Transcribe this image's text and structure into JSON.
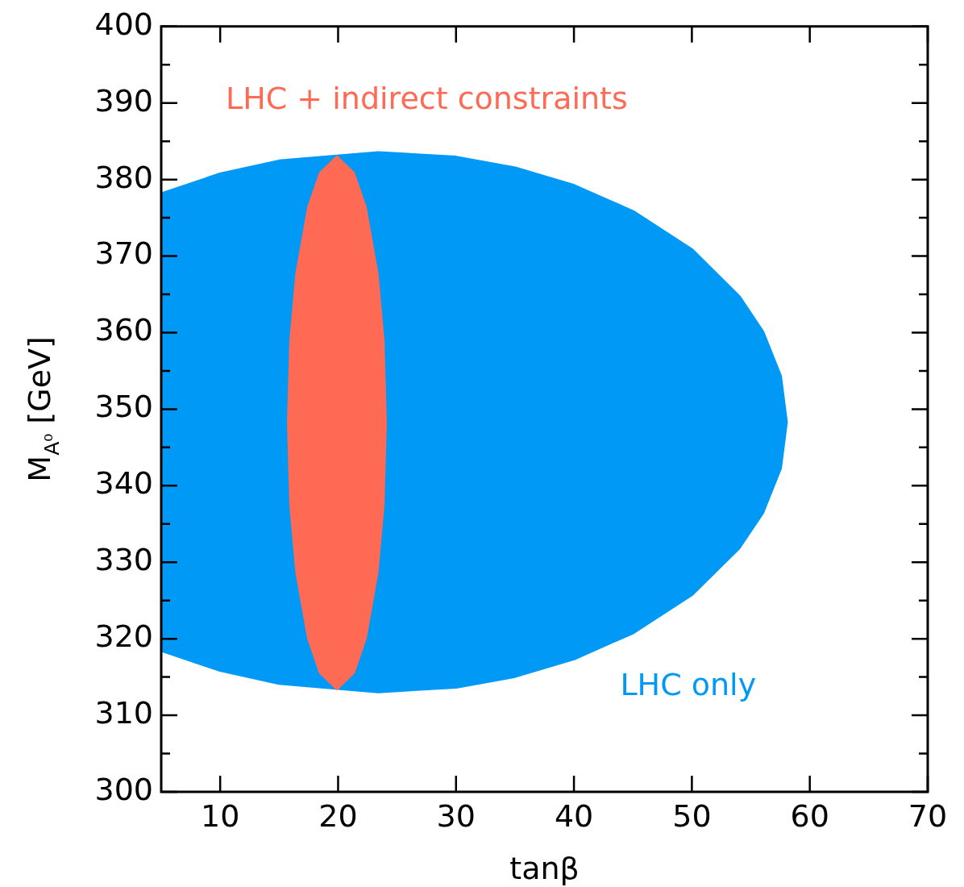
{
  "chart_data": {
    "type": "area",
    "xlabel": "tan$_{}$β",
    "ylabel": "M$_{A⁰}$ [GeV]",
    "xlim": [
      5,
      70
    ],
    "xticks": [
      10,
      20,
      30,
      40,
      50,
      60,
      70
    ],
    "ylim": [
      300,
      400
    ],
    "yticks": [
      300,
      {
        "value": 305,
        "label": null
      },
      310,
      {
        "value": 315,
        "label": null
      },
      320,
      {
        "value": 325,
        "label": null
      },
      330,
      {
        "value": 335,
        "label": null
      },
      340,
      {
        "value": 345,
        "label": null
      },
      350,
      {
        "value": 355,
        "label": null
      },
      360,
      {
        "value": 365,
        "label": null
      },
      370,
      {
        "value": 375,
        "label": null
      },
      380,
      {
        "value": 385,
        "label": null
      },
      390,
      {
        "value": 395,
        "label": null
      },
      400
    ],
    "grid": false,
    "legend": false,
    "series": [
      {
        "name": "LHC only",
        "color": "#0099f5",
        "x": [
          5,
          10,
          15,
          23.4,
          30,
          35,
          40,
          45,
          50,
          54,
          56,
          57.5,
          58,
          57.5,
          56,
          54,
          50,
          45,
          40,
          35,
          30,
          23.4,
          15,
          10,
          5
        ],
        "values": [
          378.1,
          380.7,
          382.4,
          383.5,
          382.9,
          381.5,
          379.2,
          375.8,
          370.8,
          364.7,
          360.1,
          354.3,
          348.3,
          342.3,
          336.5,
          331.9,
          325.8,
          320.8,
          317.4,
          315.1,
          313.7,
          313.1,
          314.2,
          315.9,
          318.5
        ]
      },
      {
        "name": "LHC + indirect constraints",
        "color": "#ff6a55",
        "x": [
          15.8,
          16,
          16.5,
          17.5,
          18.5,
          19.9,
          21.3,
          22.3,
          23.3,
          23.8,
          24,
          23.8,
          23.3,
          22.3,
          21.3,
          19.9,
          18.5,
          17.5,
          16.5,
          16,
          15.8
        ],
        "values": [
          348.2,
          358.9,
          367.6,
          376.3,
          380.8,
          382.9,
          380.8,
          376.3,
          367.6,
          358.9,
          348.2,
          337.5,
          328.8,
          320.1,
          315.6,
          313.5,
          315.6,
          320.1,
          328.8,
          337.5,
          348.2
        ]
      }
    ]
  }
}
